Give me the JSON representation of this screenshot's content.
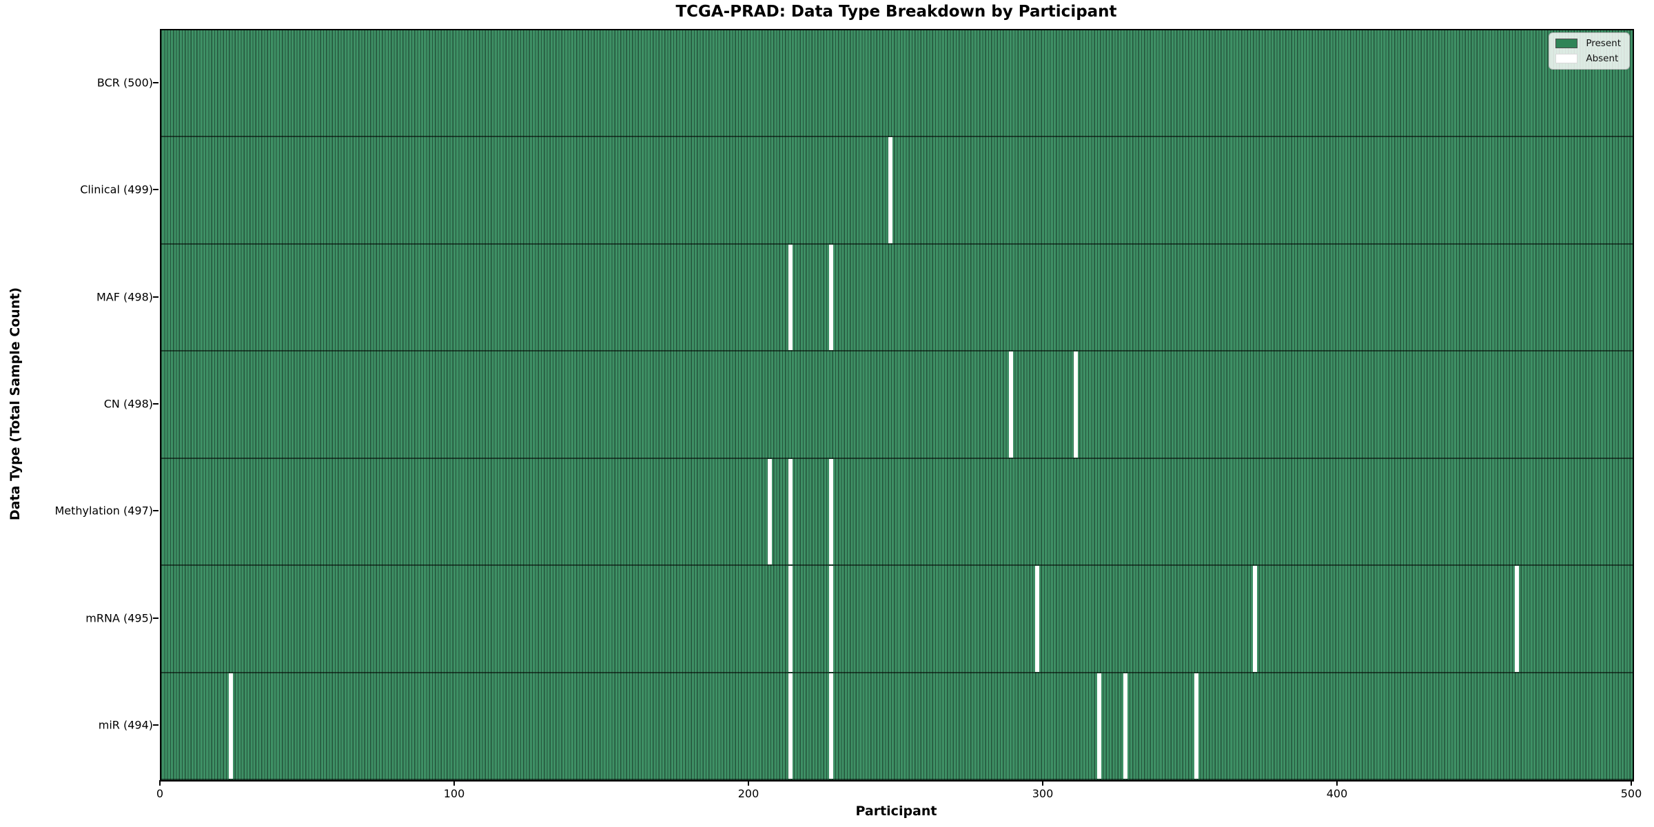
{
  "chart_data": {
    "type": "heatmap",
    "title": "TCGA-PRAD: Data Type Breakdown by Participant",
    "xlabel": "Participant",
    "ylabel": "Data Type (Total Sample Count)",
    "xlim": [
      0,
      500
    ],
    "x_ticks": [
      0,
      100,
      200,
      300,
      400,
      500
    ],
    "n_participants": 500,
    "grid": false,
    "legend_position": "upper right",
    "legend": [
      {
        "name": "present",
        "label": "Present",
        "color": "#2f8457"
      },
      {
        "name": "absent",
        "label": "Absent",
        "color": "#ffffff"
      }
    ],
    "colors": {
      "present_fill": "#3e9065",
      "bar_edge": "#1e4a30",
      "absent_fill": "#ffffff",
      "spine": "#000000"
    },
    "rows": [
      {
        "name": "BCR",
        "label": "BCR (500)",
        "total": 500,
        "absent_participants": []
      },
      {
        "name": "Clinical",
        "label": "Clinical (499)",
        "total": 499,
        "absent_participants": [
          247
        ]
      },
      {
        "name": "MAF",
        "label": "MAF (498)",
        "total": 498,
        "absent_participants": [
          213,
          227
        ]
      },
      {
        "name": "CN",
        "label": "CN (498)",
        "total": 498,
        "absent_participants": [
          288,
          310
        ]
      },
      {
        "name": "Methylation",
        "label": "Methylation (497)",
        "total": 497,
        "absent_participants": [
          206,
          213,
          227
        ]
      },
      {
        "name": "mRNA",
        "label": "mRNA (495)",
        "total": 495,
        "absent_participants": [
          213,
          227,
          297,
          371,
          460
        ]
      },
      {
        "name": "miR",
        "label": "miR (494)",
        "total": 494,
        "absent_participants": [
          23,
          213,
          227,
          318,
          327,
          351
        ]
      }
    ]
  }
}
